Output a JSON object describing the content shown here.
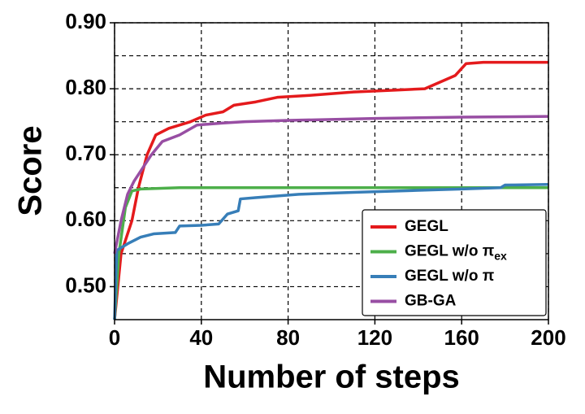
{
  "chart_data": {
    "type": "line",
    "xlabel": "Number of steps",
    "ylabel": "Score",
    "xlim": [
      0,
      200
    ],
    "xticks": [
      0,
      40,
      80,
      120,
      160,
      200
    ],
    "ylim": [
      0.45,
      0.9
    ],
    "yticks": [
      {
        "value": 0.5,
        "label": "0.50"
      },
      {
        "value": 0.6,
        "label": "0.60"
      },
      {
        "value": 0.7,
        "label": "0.70"
      },
      {
        "value": 0.8,
        "label": "0.80"
      },
      {
        "value": 0.9,
        "label": "0.90"
      }
    ],
    "yminor_grid": [
      0.55,
      0.65,
      0.75,
      0.85
    ],
    "grid": true,
    "legend": "lower right",
    "series": [
      {
        "name": "GEGL",
        "color": "#e41a1c",
        "x": [
          0,
          3,
          8,
          11,
          15,
          19,
          25,
          35,
          42,
          50,
          55,
          65,
          75,
          90,
          110,
          130,
          143,
          150,
          157,
          162,
          170,
          200
        ],
        "values": [
          0.45,
          0.55,
          0.6,
          0.65,
          0.7,
          0.73,
          0.74,
          0.75,
          0.76,
          0.765,
          0.775,
          0.78,
          0.787,
          0.79,
          0.795,
          0.798,
          0.8,
          0.81,
          0.82,
          0.838,
          0.84,
          0.84
        ]
      },
      {
        "name": "GEGL w/o π",
        "name_subscript": "ex",
        "color": "#4daf4a",
        "x": [
          0,
          2,
          5,
          8,
          12,
          30,
          200
        ],
        "values": [
          0.45,
          0.55,
          0.62,
          0.645,
          0.648,
          0.65,
          0.65
        ]
      },
      {
        "name": "GEGL w/o π",
        "color": "#377eb8",
        "x": [
          0,
          1,
          6,
          12,
          18,
          28,
          30,
          40,
          48,
          52,
          57,
          58,
          65,
          85,
          110,
          140,
          160,
          178,
          180,
          200
        ],
        "values": [
          0.45,
          0.555,
          0.565,
          0.575,
          0.58,
          0.582,
          0.592,
          0.593,
          0.595,
          0.61,
          0.615,
          0.633,
          0.635,
          0.64,
          0.643,
          0.646,
          0.648,
          0.65,
          0.654,
          0.655
        ]
      },
      {
        "name": "GB-GA",
        "color": "#984ea3",
        "x": [
          0,
          3,
          6,
          9,
          13,
          17,
          22,
          30,
          38,
          50,
          60,
          80,
          120,
          160,
          200
        ],
        "values": [
          0.55,
          0.6,
          0.64,
          0.66,
          0.68,
          0.7,
          0.72,
          0.73,
          0.745,
          0.748,
          0.75,
          0.752,
          0.755,
          0.757,
          0.758
        ]
      }
    ]
  }
}
